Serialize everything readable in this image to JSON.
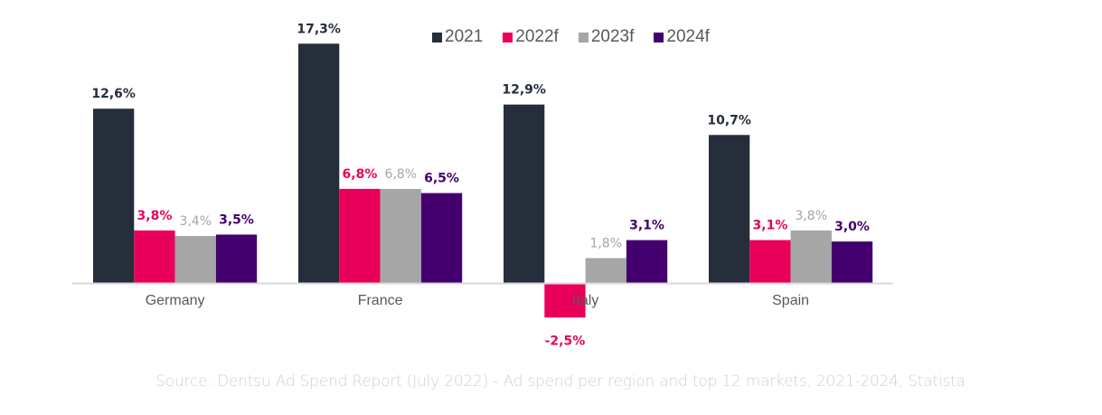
{
  "chart_data": {
    "type": "bar",
    "title": "",
    "xlabel": "",
    "ylabel": "",
    "categories": [
      "Germany",
      "France",
      "Italy",
      "Spain"
    ],
    "series": [
      {
        "name": "2021",
        "color": "#262d3b",
        "label_color": "#262d3b",
        "values": [
          12.6,
          17.3,
          12.9,
          10.7
        ],
        "labels": [
          "12,6%",
          "17,3%",
          "12,9%",
          "10,7%"
        ]
      },
      {
        "name": "2022f",
        "color": "#e8005a",
        "label_color": "#e8005a",
        "values": [
          3.8,
          6.8,
          -2.5,
          3.1
        ],
        "labels": [
          "3,8%",
          "6,8%",
          "-2,5%",
          "3,1%"
        ]
      },
      {
        "name": "2023f",
        "color": "#a6a6a6",
        "label_color": "#a6a6a6",
        "values": [
          3.4,
          6.8,
          1.8,
          3.8
        ],
        "labels": [
          "3,4%",
          "6,8%",
          "1,8%",
          "3,8%"
        ]
      },
      {
        "name": "2024f",
        "color": "#44006e",
        "label_color": "#44006e",
        "values": [
          3.5,
          6.5,
          3.1,
          3.0
        ],
        "labels": [
          "3,5%",
          "6,5%",
          "3,1%",
          "3,0%"
        ]
      }
    ],
    "ylim": [
      -2.5,
      17.3
    ],
    "grid": false,
    "legend_position": "top-center",
    "axis_color": "#d9d9d9",
    "category_label_color": "#595959"
  },
  "legend": [
    {
      "label": "2021",
      "color": "#262d3b"
    },
    {
      "label": "2022f",
      "color": "#e8005a"
    },
    {
      "label": "2023f",
      "color": "#a6a6a6"
    },
    {
      "label": "2024f",
      "color": "#44006e"
    }
  ],
  "source": "Source: Dentsu Ad Spend Report (July 2022) - Ad spend per region and top 12 markets, 2021-2024, Statista"
}
